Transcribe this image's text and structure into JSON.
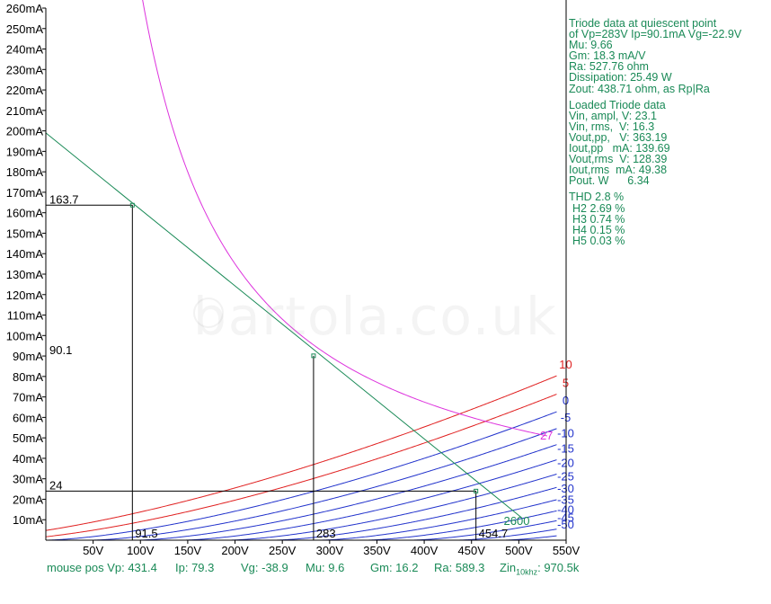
{
  "chart_data": {
    "type": "line",
    "title": "",
    "xlabel": "",
    "ylabel": "",
    "xlim": [
      0,
      550
    ],
    "ylim": [
      0,
      260
    ],
    "x_ticks": [
      "50V",
      "100V",
      "150V",
      "200V",
      "250V",
      "300V",
      "350V",
      "400V",
      "450V",
      "500V",
      "550V"
    ],
    "y_ticks": [
      "10mA",
      "20mA",
      "30mA",
      "40mA",
      "50mA",
      "60mA",
      "70mA",
      "80mA",
      "90mA",
      "100mA",
      "110mA",
      "120mA",
      "130mA",
      "140mA",
      "150mA",
      "160mA",
      "170mA",
      "180mA",
      "190mA",
      "200mA",
      "210mA",
      "220mA",
      "230mA",
      "240mA",
      "250mA",
      "260mA"
    ],
    "grid": false,
    "mu": 9.66,
    "k_perv": 0.005,
    "grid_curves": [
      {
        "label": "10",
        "vg": 10,
        "color": "#e02020"
      },
      {
        "label": "5",
        "vg": 5,
        "color": "#e02020"
      },
      {
        "label": "0",
        "vg": 0,
        "color": "#2233cc"
      },
      {
        "label": "-5",
        "vg": -5,
        "color": "#2233cc"
      },
      {
        "label": "-10",
        "vg": -10,
        "color": "#2233cc"
      },
      {
        "label": "-15",
        "vg": -15,
        "color": "#2233cc"
      },
      {
        "label": "-20",
        "vg": -20,
        "color": "#2233cc"
      },
      {
        "label": "-25",
        "vg": -25,
        "color": "#2233cc"
      },
      {
        "label": "-30",
        "vg": -30,
        "color": "#2233cc"
      },
      {
        "label": "-35",
        "vg": -35,
        "color": "#2233cc"
      },
      {
        "label": "-40",
        "vg": -40,
        "color": "#2233cc"
      },
      {
        "label": "-45",
        "vg": -45,
        "color": "#2233cc"
      },
      {
        "label": "-50",
        "vg": -50,
        "color": "#2233cc"
      }
    ],
    "dissipation_curve": {
      "label": "27",
      "watts": 27,
      "color": "#dd33dd"
    },
    "load_line": {
      "label": "2600",
      "start": [
        0,
        199
      ],
      "end": [
        503,
        11
      ],
      "color": "#1a8a57"
    },
    "operating_points": [
      {
        "vp": 91.5,
        "ip": 163.7
      },
      {
        "vp": 283,
        "ip": 90.1
      },
      {
        "vp": 454.7,
        "ip": 24
      }
    ],
    "annotations": {
      "ip_max": "163.7",
      "ip_q": "90.1",
      "ip_min": "24",
      "vp_min": "91.5",
      "vp_q": "283",
      "vp_max": "454.7"
    },
    "colors": {
      "axis": "#000000",
      "red_curves": "#e02020",
      "blue_curves": "#2233cc",
      "load_line": "#1a8a57",
      "dissipation": "#dd33dd",
      "text_panel": "#1a8a57"
    }
  },
  "info_panel": {
    "header": [
      "Triode data at quiescent point",
      "of Vp=283V Ip=90.1mA Vg=-22.9V",
      "Mu: 9.66",
      "Gm: 18.3 mA/V",
      "Ra: 527.76 ohm",
      "Dissipation: 25.49 W",
      "Zout: 438.71 ohm, as Rp|Ra"
    ],
    "loaded": [
      "Loaded Triode data",
      "Vin, ampl, V: 23.1",
      "Vin, rms,  V: 16.3",
      "Vout,pp,   V: 363.19",
      "Iout,pp   mA: 139.69",
      "Vout,rms  V: 128.39",
      "Iout,rms  mA: 49.38",
      "Pout. W      6.34"
    ],
    "thd": [
      "THD 2.8 %",
      "H2 2.69 %",
      "H3 0.74 %",
      "H4 0.15 %",
      "H5 0.03 %"
    ]
  },
  "status_bar": {
    "mouse_vp": "mouse pos Vp: 431.4",
    "ip": "Ip: 79.3",
    "vg": "Vg: -38.9",
    "mu": "Mu: 9.6",
    "gm": "Gm: 16.2",
    "ra": "Ra: 589.3",
    "zin_label": "Zin",
    "zin_sub": "10khz",
    "zin_value": ": 970.5k"
  },
  "watermark": "bartola.co.uk"
}
